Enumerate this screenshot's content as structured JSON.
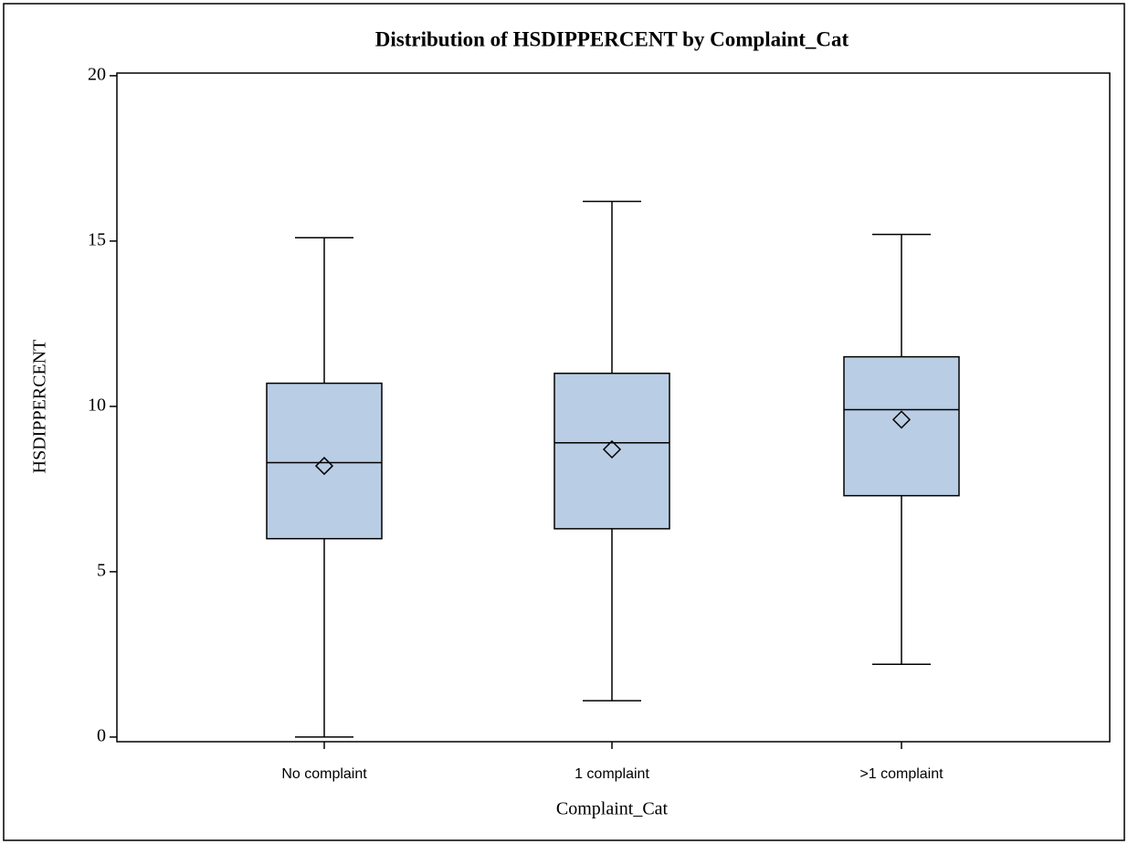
{
  "chart_data": {
    "type": "box",
    "title": "Distribution of HSDIPPERCENT by Complaint_Cat",
    "x_label": "Complaint_Cat",
    "y_label": "HSDIPPERCENT",
    "categories": [
      "No complaint",
      "1 complaint",
      ">1 complaint"
    ],
    "min": [
      0,
      1.1,
      2.2
    ],
    "q1": [
      6.0,
      6.3,
      7.3
    ],
    "median": [
      8.3,
      8.9,
      9.9
    ],
    "q3": [
      10.7,
      11.0,
      11.5
    ],
    "max": [
      15.1,
      16.2,
      15.2
    ],
    "mean": [
      8.2,
      8.7,
      9.6
    ],
    "color": "#b9cde5",
    "ylim": [
      -0.14,
      20.08
    ],
    "yticks": [
      0,
      5,
      10,
      15,
      20
    ]
  }
}
